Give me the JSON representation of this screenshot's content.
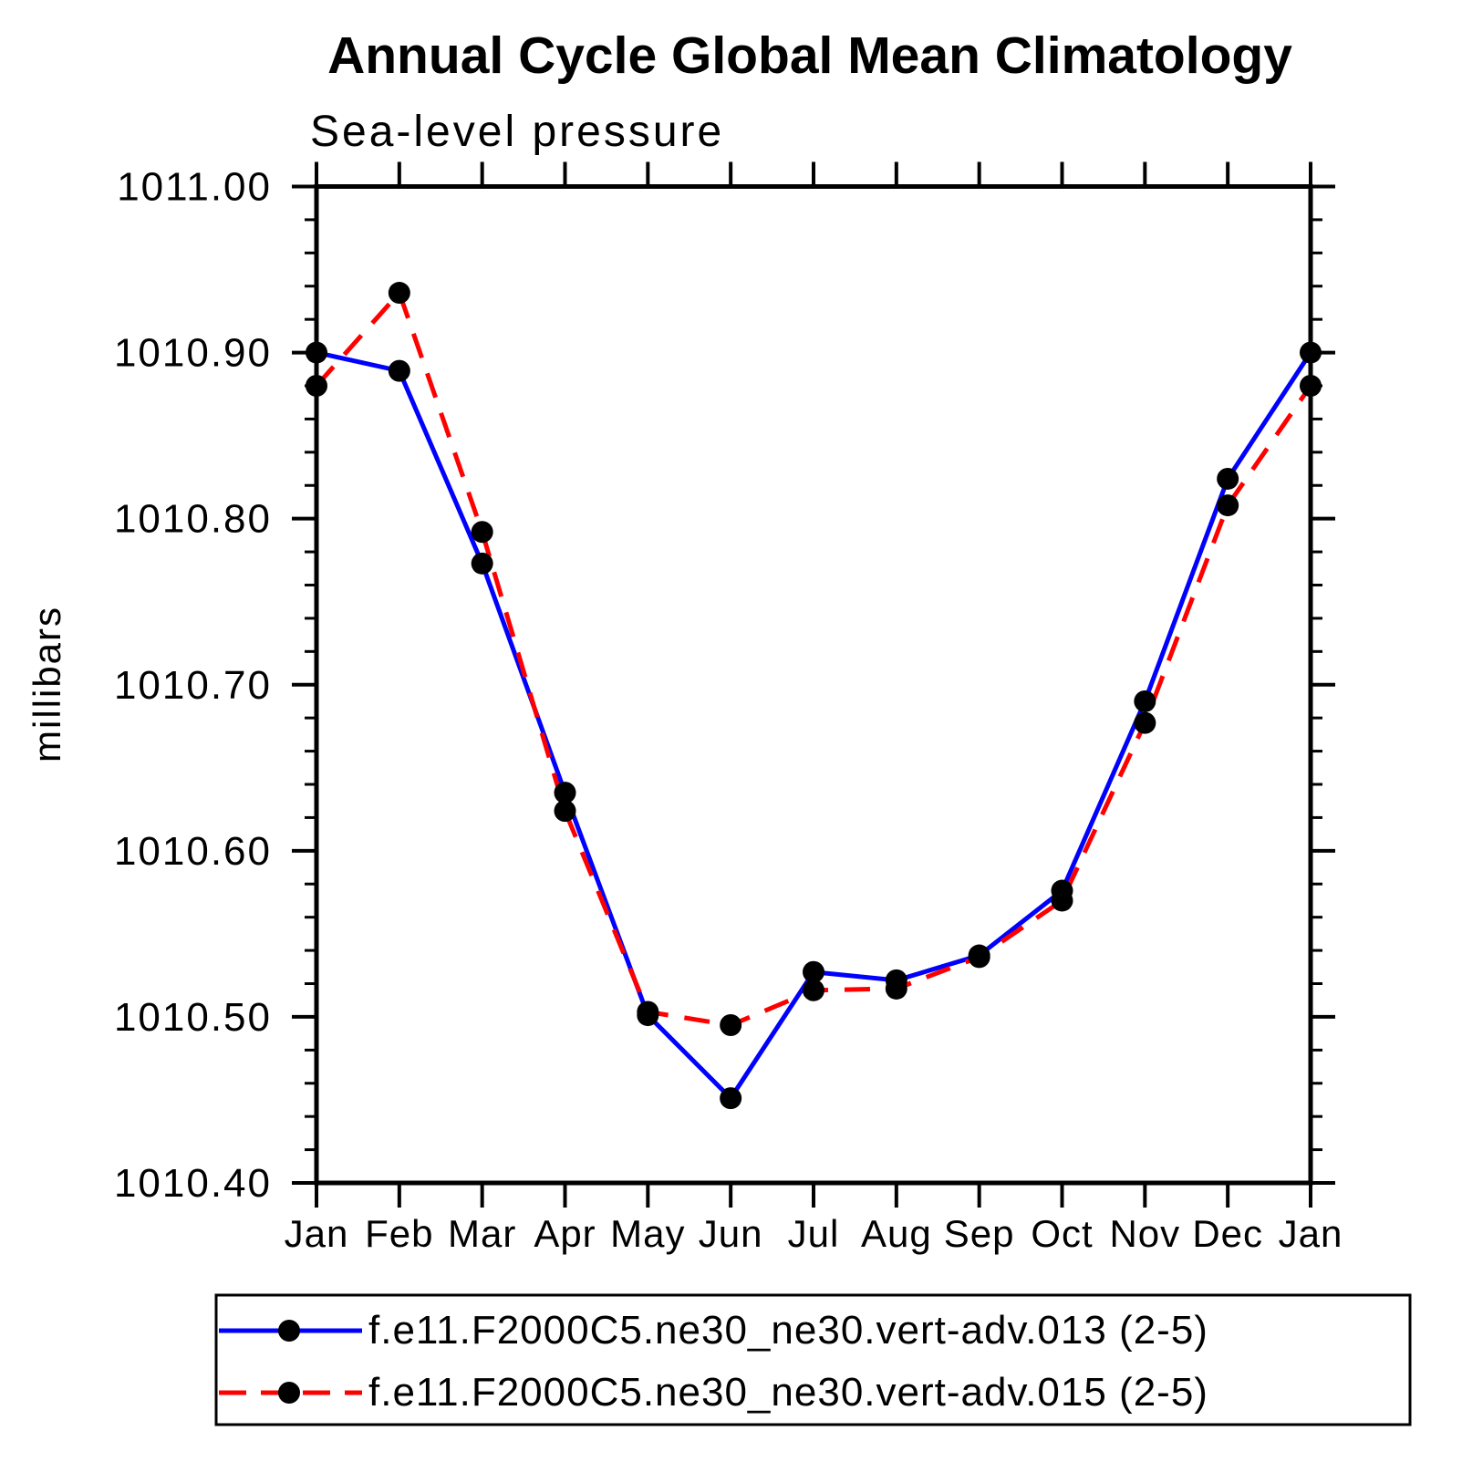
{
  "title": "Annual Cycle Global Mean Climatology",
  "subtitle": "Sea-level pressure",
  "chart_data": {
    "type": "line",
    "categories": [
      "Jan",
      "Feb",
      "Mar",
      "Apr",
      "May",
      "Jun",
      "Jul",
      "Aug",
      "Sep",
      "Oct",
      "Nov",
      "Dec",
      "Jan"
    ],
    "xlabel": "",
    "ylabel": "millibars",
    "ylim": [
      1010.4,
      1011.0
    ],
    "ytick_step": 0.1,
    "yminor_step": 0.02,
    "ytick_labels": [
      "1010.40",
      "1010.50",
      "1010.60",
      "1010.70",
      "1010.80",
      "1010.90",
      "1011.00"
    ],
    "grid": false,
    "axis_color": "#000000",
    "marker_color": "#000000",
    "legend_position": "bottom",
    "series": [
      {
        "name": "f.e11.F2000C5.ne30_ne30.vert-adv.013 (2-5)",
        "color": "#0000ff",
        "style": "solid",
        "values": [
          1010.9,
          1010.889,
          1010.773,
          1010.635,
          1010.501,
          1010.451,
          1010.527,
          1010.522,
          1010.537,
          1010.576,
          1010.69,
          1010.824,
          1010.9
        ]
      },
      {
        "name": "f.e11.F2000C5.ne30_ne30.vert-adv.015 (2-5)",
        "color": "#ff0000",
        "style": "dashed",
        "values": [
          1010.88,
          1010.936,
          1010.792,
          1010.624,
          1010.503,
          1010.495,
          1010.516,
          1010.517,
          1010.536,
          1010.57,
          1010.677,
          1010.808,
          1010.88
        ]
      }
    ]
  }
}
